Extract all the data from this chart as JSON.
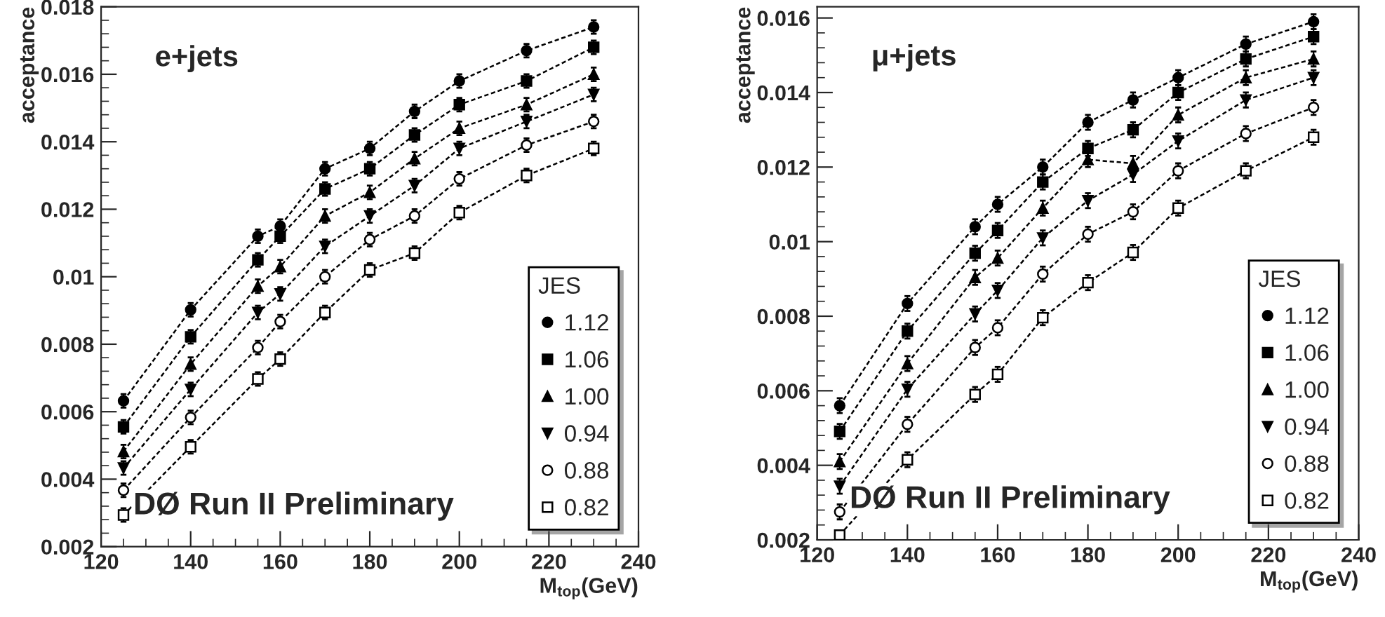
{
  "chart_data": [
    {
      "type": "line",
      "x": [
        125,
        140,
        155,
        160,
        170,
        180,
        190,
        200,
        215,
        230
      ],
      "xlabel": "M$_{top}$(GeV)",
      "ylabel": "acceptance",
      "legend_title": "JES",
      "legend": "bottom right",
      "line_style": "dashed",
      "annotations": [
        "e+jets",
        "DØ Run II Preliminary"
      ],
      "xlim": [
        120,
        240
      ],
      "xticks": [
        120,
        140,
        160,
        180,
        200,
        220,
        240
      ],
      "ylim": [
        0.002,
        0.018
      ],
      "yticks": [
        0.002,
        0.004,
        0.006,
        0.008,
        0.01,
        0.012,
        0.014,
        0.016,
        0.018
      ],
      "series": [
        {
          "name": "1.12",
          "color": "#000000",
          "marker": "circle",
          "values": [
            0.00632,
            0.00902,
            0.0112,
            0.0115,
            0.0132,
            0.0138,
            0.0149,
            0.0158,
            0.0167,
            0.0174
          ],
          "errors": [
            0.0002,
            0.0002,
            0.0002,
            0.0002,
            0.0002,
            0.0002,
            0.0002,
            0.0002,
            0.0002,
            0.0002
          ]
        },
        {
          "name": "1.06",
          "color": "#000000",
          "marker": "square",
          "values": [
            0.00555,
            0.00822,
            0.0105,
            0.0112,
            0.0126,
            0.0132,
            0.0142,
            0.0151,
            0.0158,
            0.0168
          ],
          "errors": [
            0.0002,
            0.0002,
            0.0002,
            0.0002,
            0.0002,
            0.0002,
            0.0002,
            0.0002,
            0.0002,
            0.0002
          ]
        },
        {
          "name": "1.00",
          "color": "#000000",
          "marker": "triangle",
          "values": [
            0.00482,
            0.00741,
            0.00972,
            0.0103,
            0.0118,
            0.0125,
            0.0135,
            0.0144,
            0.0151,
            0.016
          ],
          "errors": [
            0.0002,
            0.0002,
            0.0002,
            0.0002,
            0.0002,
            0.0002,
            0.0002,
            0.0002,
            0.0002,
            0.0002
          ]
        },
        {
          "name": "0.94",
          "color": "#000000",
          "marker": "triangle_down",
          "values": [
            0.00433,
            0.00666,
            0.00894,
            0.00949,
            0.0109,
            0.0118,
            0.0127,
            0.0138,
            0.0146,
            0.0154
          ],
          "errors": [
            0.0002,
            0.0002,
            0.0002,
            0.0002,
            0.0002,
            0.0002,
            0.0002,
            0.0002,
            0.0002,
            0.0002
          ]
        },
        {
          "name": "0.88",
          "color": "#000000",
          "marker": "circle_open",
          "values": [
            0.00367,
            0.00583,
            0.0079,
            0.00867,
            0.01,
            0.0111,
            0.0118,
            0.0129,
            0.0139,
            0.0146
          ],
          "errors": [
            0.0002,
            0.0002,
            0.0002,
            0.0002,
            0.0002,
            0.0002,
            0.0002,
            0.0002,
            0.0002,
            0.0002
          ]
        },
        {
          "name": "0.82",
          "color": "#000000",
          "marker": "square_open",
          "values": [
            0.00294,
            0.00496,
            0.00697,
            0.00756,
            0.00894,
            0.0102,
            0.0107,
            0.0119,
            0.013,
            0.0138
          ],
          "errors": [
            0.0002,
            0.0002,
            0.0002,
            0.0002,
            0.0002,
            0.0002,
            0.0002,
            0.0002,
            0.0002,
            0.0002
          ]
        }
      ]
    },
    {
      "type": "line",
      "x": [
        125,
        140,
        155,
        160,
        170,
        180,
        190,
        200,
        215,
        230
      ],
      "xlabel": "M$_{top}$(GeV)",
      "ylabel": "acceptance",
      "legend_title": "JES",
      "legend": "bottom right",
      "line_style": "dashed",
      "annotations": [
        "μ+jets",
        "DØ Run II Preliminary"
      ],
      "xlim": [
        120,
        240
      ],
      "xticks": [
        120,
        140,
        160,
        180,
        200,
        220,
        240
      ],
      "ylim": [
        0.002,
        0.0163
      ],
      "yticks": [
        0.002,
        0.004,
        0.006,
        0.008,
        0.01,
        0.012,
        0.014,
        0.016
      ],
      "series": [
        {
          "name": "1.12",
          "color": "#000000",
          "marker": "circle",
          "values": [
            0.0056,
            0.00834,
            0.0104,
            0.011,
            0.012,
            0.0132,
            0.0138,
            0.0144,
            0.0153,
            0.0159
          ],
          "errors": [
            0.0002,
            0.0002,
            0.0002,
            0.0002,
            0.0002,
            0.0002,
            0.0002,
            0.0002,
            0.0002,
            0.0002
          ]
        },
        {
          "name": "1.06",
          "color": "#000000",
          "marker": "square",
          "values": [
            0.00491,
            0.0076,
            0.00969,
            0.0103,
            0.0116,
            0.0125,
            0.013,
            0.014,
            0.0149,
            0.0155
          ],
          "errors": [
            0.0002,
            0.0002,
            0.0002,
            0.0002,
            0.0002,
            0.0002,
            0.0002,
            0.0002,
            0.0002,
            0.0002
          ]
        },
        {
          "name": "1.00",
          "color": "#000000",
          "marker": "triangle",
          "values": [
            0.0041,
            0.00673,
            0.00904,
            0.00956,
            0.0109,
            0.0122,
            0.0121,
            0.0134,
            0.0144,
            0.0149
          ],
          "errors": [
            0.0002,
            0.0002,
            0.0002,
            0.0002,
            0.0002,
            0.0002,
            0.0002,
            0.0002,
            0.0002,
            0.0002
          ]
        },
        {
          "name": "0.94",
          "color": "#000000",
          "marker": "triangle_down",
          "values": [
            0.00344,
            0.00604,
            0.00806,
            0.00869,
            0.0101,
            0.0111,
            0.0118,
            0.0127,
            0.0138,
            0.0144
          ],
          "errors": [
            0.0002,
            0.0002,
            0.0002,
            0.0002,
            0.0002,
            0.0002,
            0.0002,
            0.0002,
            0.0002,
            0.0002
          ]
        },
        {
          "name": "0.88",
          "color": "#000000",
          "marker": "circle_open",
          "values": [
            0.00275,
            0.0051,
            0.00716,
            0.00769,
            0.00913,
            0.0102,
            0.0108,
            0.0119,
            0.0129,
            0.0136
          ],
          "errors": [
            0.0002,
            0.0002,
            0.0002,
            0.0002,
            0.0002,
            0.0002,
            0.0002,
            0.0002,
            0.0002,
            0.0002
          ]
        },
        {
          "name": "0.82",
          "color": "#000000",
          "marker": "square_open",
          "values": [
            0.00213,
            0.00415,
            0.0059,
            0.00644,
            0.00796,
            0.0089,
            0.00971,
            0.0109,
            0.0119,
            0.0128
          ],
          "errors": [
            0.0001,
            0.0002,
            0.0002,
            0.0002,
            0.0002,
            0.0002,
            0.0002,
            0.0002,
            0.0002,
            0.0002
          ]
        }
      ]
    }
  ]
}
